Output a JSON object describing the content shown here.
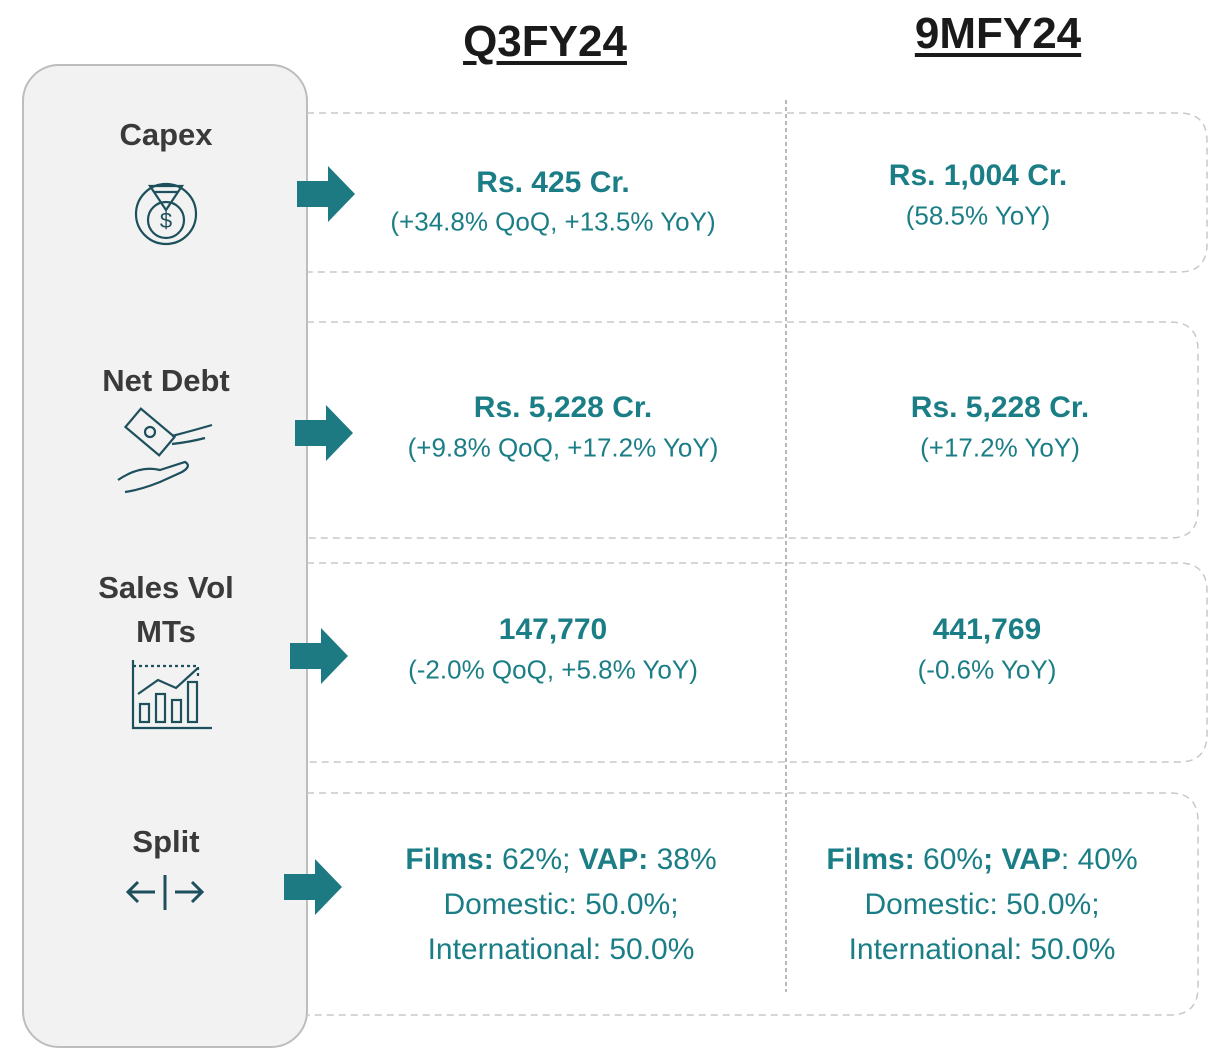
{
  "headers": [
    "Q3FY24",
    "9MFY24"
  ],
  "rows": [
    {
      "label": [
        "Capex"
      ],
      "cells": [
        {
          "lines": [
            [
              {
                "text": "Rs. 425 Cr.",
                "bold": true
              }
            ],
            [
              {
                "text": "(+34.8% QoQ, +13.5% YoY)",
                "bold": false
              }
            ]
          ]
        },
        {
          "lines": [
            [
              {
                "text": "Rs. 1,004 Cr.",
                "bold": true
              }
            ],
            [
              {
                "text": "(58.5% YoY)",
                "bold": false
              }
            ]
          ]
        }
      ]
    },
    {
      "label": [
        "Net Debt"
      ],
      "cells": [
        {
          "lines": [
            [
              {
                "text": "Rs. 5,228 Cr.",
                "bold": true
              }
            ],
            [
              {
                "text": "(+9.8% QoQ, +17.2% YoY)",
                "bold": false
              }
            ]
          ]
        },
        {
          "lines": [
            [
              {
                "text": "Rs. 5,228 Cr.",
                "bold": true
              }
            ],
            [
              {
                "text": "(+17.2% YoY)",
                "bold": false
              }
            ]
          ]
        }
      ]
    },
    {
      "label": [
        "Sales Vol",
        "MTs"
      ],
      "cells": [
        {
          "lines": [
            [
              {
                "text": "147,770",
                "bold": true
              }
            ],
            [
              {
                "text": "(-2.0% QoQ, +5.8% YoY)",
                "bold": false
              }
            ]
          ]
        },
        {
          "lines": [
            [
              {
                "text": "441,769",
                "bold": true
              }
            ],
            [
              {
                "text": "(-0.6% YoY)",
                "bold": false
              }
            ]
          ]
        }
      ]
    },
    {
      "label": [
        "Split"
      ],
      "cells": [
        {
          "lines": [
            [
              {
                "text": "Films:",
                "bold": true
              },
              {
                "text": " 62%; ",
                "bold": false
              },
              {
                "text": "VAP:",
                "bold": true
              },
              {
                "text": " 38%",
                "bold": false
              }
            ],
            [
              {
                "text": "Domestic: 50.0%;",
                "bold": false
              }
            ],
            [
              {
                "text": "International: 50.0%",
                "bold": false
              }
            ]
          ]
        },
        {
          "lines": [
            [
              {
                "text": "Films:",
                "bold": true
              },
              {
                "text": " 60%",
                "bold": false
              },
              {
                "text": "; VAP",
                "bold": true
              },
              {
                "text": ": 40%",
                "bold": false
              }
            ],
            [
              {
                "text": "Domestic: 50.0%;",
                "bold": false
              }
            ],
            [
              {
                "text": "International: 50.0%",
                "bold": false
              }
            ]
          ]
        }
      ]
    }
  ]
}
